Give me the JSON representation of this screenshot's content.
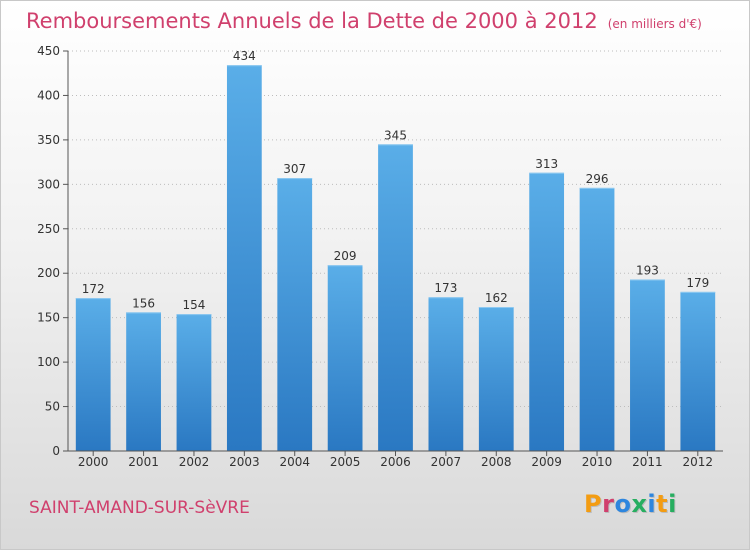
{
  "header": {
    "title": "Remboursements Annuels de la Dette de 2000 à 2012",
    "unit": "(en milliers d'€)"
  },
  "footer": {
    "town": "SAINT-AMAND-SUR-SèVRE",
    "logo": "Proxiti"
  },
  "colors": {
    "accent": "#d0406d",
    "bar_top": "#5aaee8",
    "bar_bottom": "#2a78c2",
    "logo_letters": [
      "#f39c12",
      "#d0406d",
      "#2e86de",
      "#27ae60",
      "#2e86de",
      "#f39c12",
      "#27ae60"
    ]
  },
  "chart_data": {
    "type": "bar",
    "title": "Remboursements Annuels de la Dette de 2000 à 2012",
    "categories": [
      "2000",
      "2001",
      "2002",
      "2003",
      "2004",
      "2005",
      "2006",
      "2007",
      "2008",
      "2009",
      "2010",
      "2011",
      "2012"
    ],
    "values": [
      172,
      156,
      154,
      434,
      307,
      209,
      345,
      173,
      162,
      313,
      296,
      193,
      179
    ],
    "ylim": [
      0,
      450
    ],
    "yticks": [
      0,
      50,
      100,
      150,
      200,
      250,
      300,
      350,
      400,
      450
    ],
    "grid": true,
    "xlabel": "",
    "ylabel": ""
  }
}
